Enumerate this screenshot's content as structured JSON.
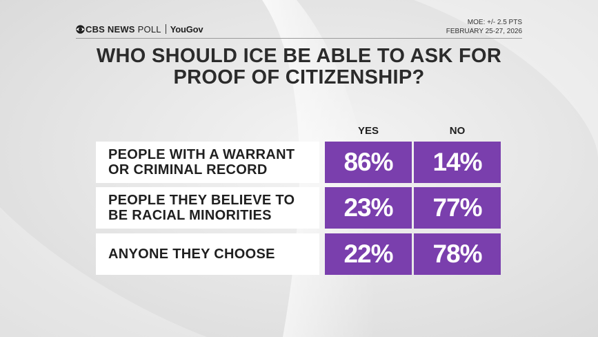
{
  "branding": {
    "network": "CBS NEWS",
    "poll": "POLL",
    "partner": "YouGov"
  },
  "meta": {
    "moe": "MOE: +/- 2.5 PTS",
    "dates": "FEBRUARY 25-27, 2026"
  },
  "colors": {
    "cell": "#7a3fad",
    "row_bg": "#ffffff",
    "background": "#e6e6e6"
  },
  "chart_data": {
    "type": "table",
    "title": "WHO SHOULD ICE BE ABLE TO ASK FOR PROOF OF CITIZENSHIP?",
    "columns": [
      "YES",
      "NO"
    ],
    "rows": [
      {
        "label": "PEOPLE WITH A WARRANT\nOR CRIMINAL RECORD",
        "values": [
          "86%",
          "14%"
        ]
      },
      {
        "label": "PEOPLE THEY BELIEVE TO\nBE RACIAL MINORITIES",
        "values": [
          "23%",
          "77%"
        ]
      },
      {
        "label": "ANYONE THEY CHOOSE",
        "values": [
          "22%",
          "78%"
        ]
      }
    ]
  }
}
